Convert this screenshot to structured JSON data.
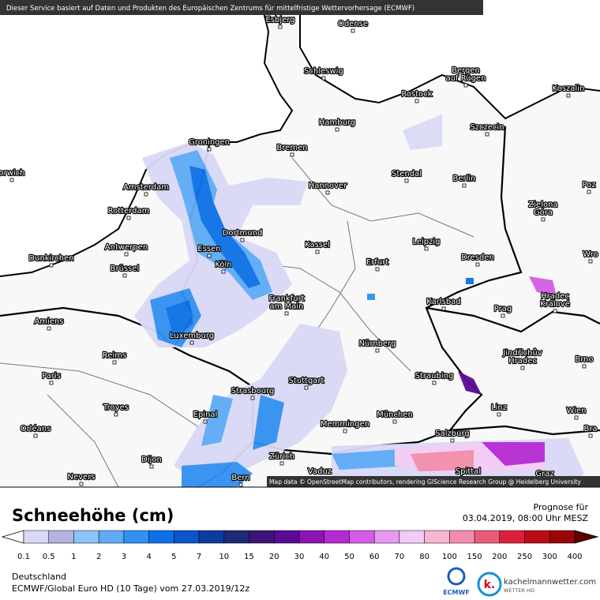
{
  "header": {
    "notice": "Dieser Service basiert auf Daten und Produkten des Europäischen Zentrums für mittelfristige Wettervorhersage (ECMWF)",
    "attribution": "Map data © OpenStreetMap contributors, rendering GIScience Research Group @ Heidelberg University"
  },
  "cities": [
    [
      "Esbjerg"
    ],
    [
      "Odense"
    ],
    [
      "Schleswig"
    ],
    [
      "Bergen",
      "auf Rügen"
    ],
    [
      "Koszalin"
    ],
    [
      "Rostock"
    ],
    [
      "Hamburg"
    ],
    [
      "Szczecin"
    ],
    [
      "Groningen"
    ],
    [
      "Bremen"
    ],
    [
      "orwich"
    ],
    [
      "Amsterdam"
    ],
    [
      "Stendal"
    ],
    [
      "Berlin"
    ],
    [
      "Hannover"
    ],
    [
      "Poz"
    ],
    [
      "Rotterdam"
    ],
    [
      "Zielona",
      "Góra"
    ],
    [
      "Dortmund"
    ],
    [
      "Antwerpen"
    ],
    [
      "Kassel"
    ],
    [
      "Leipzig"
    ],
    [
      "Essen"
    ],
    [
      "Dunkirchen"
    ],
    [
      "Erfurt"
    ],
    [
      "Dresden"
    ],
    [
      "Wro"
    ],
    [
      "Köln"
    ],
    [
      "Brüssel"
    ],
    [
      "Frankfurt",
      "am Main"
    ],
    [
      "Karlsbad"
    ],
    [
      "Hradec",
      "Králové"
    ],
    [
      "Prag"
    ],
    [
      "Amiens"
    ],
    [
      "Luxemburg"
    ],
    [
      "Nürnberg"
    ],
    [
      "Jindřichův",
      "Hradec"
    ],
    [
      "Brno"
    ],
    [
      "Reims"
    ],
    [
      "Paris"
    ],
    [
      "Stuttgart"
    ],
    [
      "Straubing"
    ],
    [
      "Strasbourg"
    ],
    [
      "Troyes"
    ],
    [
      "Linz"
    ],
    [
      "Wien"
    ],
    [
      "Epinal"
    ],
    [
      "München"
    ],
    [
      "Memmingen"
    ],
    [
      "Orléans"
    ],
    [
      "Bra"
    ],
    [
      "Salzburg"
    ],
    [
      "Zürich"
    ],
    [
      "Dijon"
    ],
    [
      "Vaduz"
    ],
    [
      "Bern"
    ],
    [
      "Nevers"
    ],
    [
      "Spittal"
    ],
    [
      "Graz"
    ]
  ],
  "legend": {
    "title": "Schneehöhe (cm)",
    "labels": [
      "0.1",
      "0.5",
      "1",
      "2",
      "3",
      "4",
      "5",
      "7",
      "10",
      "15",
      "20",
      "30",
      "40",
      "50",
      "60",
      "70",
      "80",
      "100",
      "150",
      "200",
      "250",
      "300",
      "400"
    ],
    "colors": [
      "#d9d9f6",
      "#b3b3df",
      "#8cc3f8",
      "#5eabf6",
      "#3190f0",
      "#0c71e6",
      "#0a55c9",
      "#0a3c9f",
      "#1c2a78",
      "#3a1476",
      "#5a0a96",
      "#8b14b4",
      "#b52ad3",
      "#d45ce6",
      "#e798f1",
      "#f2cbf6",
      "#f6b6d4",
      "#f18dab",
      "#ea5b78",
      "#dc1f3c",
      "#bd0b15",
      "#9a0606"
    ],
    "overflow_color": "#5a0000"
  },
  "forecast": {
    "label": "Prognose für",
    "time": "03.04.2019, 08:00 Uhr MESZ"
  },
  "footer": {
    "region": "Deutschland",
    "model": "ECMWF/Global Euro HD (10 Tage) vom 27.03.2019/12z",
    "logo1": "ECMWF",
    "logo2": "kachelmannwetter.com",
    "logo2_sub": "WETTER HD"
  }
}
